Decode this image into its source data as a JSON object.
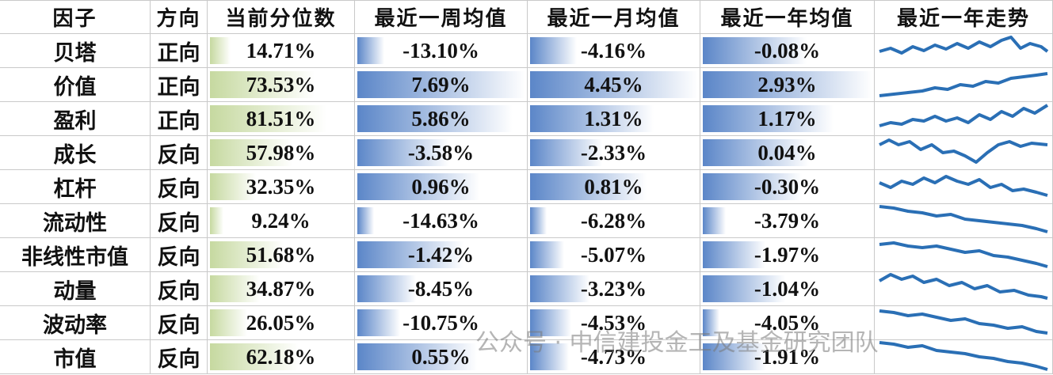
{
  "table": {
    "header": [
      "因子",
      "方向",
      "当前分位数",
      "最近一周均值",
      "最近一月均值",
      "最近一年均值",
      "最近一年走势"
    ],
    "rows": [
      [
        "贝塔",
        "正向",
        "14.71%",
        "-13.10%",
        "-4.16%",
        "-0.08%"
      ],
      [
        "价值",
        "正向",
        "73.53%",
        "7.69%",
        "4.45%",
        "2.93%"
      ],
      [
        "盈利",
        "正向",
        "81.51%",
        "5.86%",
        "1.31%",
        "1.17%"
      ],
      [
        "成长",
        "反向",
        "57.98%",
        "-3.58%",
        "-2.33%",
        "0.04%"
      ],
      [
        "杠杆",
        "反向",
        "32.35%",
        "0.96%",
        "0.81%",
        "-0.30%"
      ],
      [
        "流动性",
        "反向",
        "9.24%",
        "-14.63%",
        "-6.28%",
        "-3.79%"
      ],
      [
        "非线性市值",
        "反向",
        "51.68%",
        "-1.42%",
        "-5.07%",
        "-1.97%"
      ],
      [
        "动量",
        "反向",
        "34.87%",
        "-8.45%",
        "-3.23%",
        "-1.04%"
      ],
      [
        "波动率",
        "反向",
        "26.05%",
        "-10.75%",
        "-4.53%",
        "-4.05%"
      ],
      [
        "市值",
        "反向",
        "62.18%",
        "0.55%",
        "-4.73%",
        "-1.91%"
      ]
    ]
  },
  "watermark": "公众号 · 中信建投金工及基金研究团队"
}
